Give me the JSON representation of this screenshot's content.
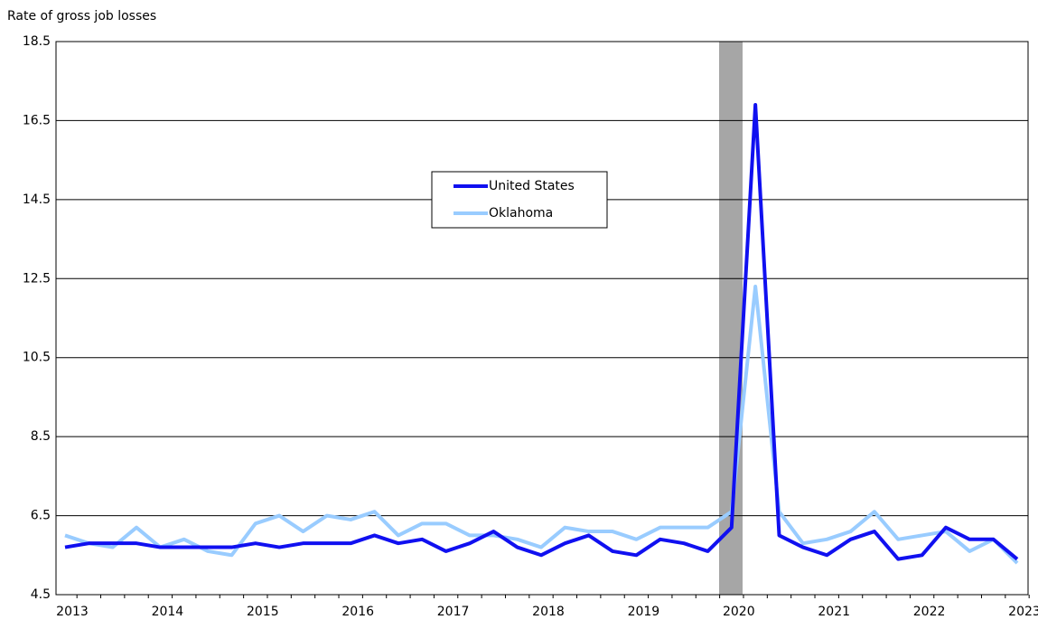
{
  "chart_data": {
    "type": "line",
    "y_axis_label": "Rate of gross job losses",
    "categories": [
      "2013",
      null,
      null,
      null,
      "2014",
      null,
      null,
      null,
      "2015",
      null,
      null,
      null,
      "2016",
      null,
      null,
      null,
      "2017",
      null,
      null,
      null,
      "2018",
      null,
      null,
      null,
      "2019",
      null,
      null,
      null,
      "2020",
      null,
      null,
      null,
      "2021",
      null,
      null,
      null,
      "2022",
      null,
      null,
      null,
      "2023"
    ],
    "series": [
      {
        "name": "United States",
        "color": "#1010f0",
        "values": [
          5.7,
          5.8,
          5.8,
          5.8,
          5.7,
          5.7,
          5.7,
          5.7,
          5.8,
          5.7,
          5.8,
          5.8,
          5.8,
          6.0,
          5.8,
          5.9,
          5.6,
          5.8,
          6.1,
          5.7,
          5.5,
          5.8,
          6.0,
          5.6,
          5.5,
          5.9,
          5.8,
          5.6,
          6.2,
          16.9,
          6.0,
          5.7,
          5.5,
          5.9,
          6.1,
          5.4,
          5.5,
          6.2,
          5.9,
          5.9,
          5.4
        ]
      },
      {
        "name": "Oklahoma",
        "color": "#99ccff",
        "values": [
          6.0,
          5.8,
          5.7,
          6.2,
          5.7,
          5.9,
          5.6,
          5.5,
          6.3,
          6.5,
          6.1,
          6.5,
          6.4,
          6.6,
          6.0,
          6.3,
          6.3,
          6.0,
          6.0,
          5.9,
          5.7,
          6.2,
          6.1,
          6.1,
          5.9,
          6.2,
          6.2,
          6.2,
          6.6,
          12.3,
          6.6,
          5.8,
          5.9,
          6.1,
          6.6,
          5.9,
          6.0,
          6.1,
          5.6,
          5.9,
          5.3
        ]
      }
    ],
    "ylim": [
      4.5,
      18.5
    ],
    "yticks": [
      4.5,
      6.5,
      8.5,
      10.5,
      12.5,
      14.5,
      16.5,
      18.5
    ],
    "grid": true
  }
}
